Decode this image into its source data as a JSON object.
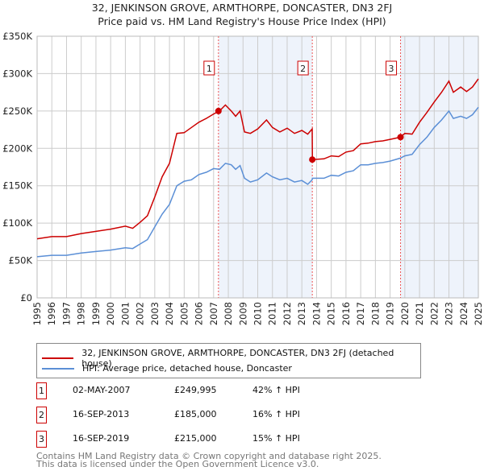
{
  "chart_data": {
    "type": "line",
    "title": "32, JENKINSON GROVE, ARMTHORPE, DONCASTER, DN3 2FJ",
    "subtitle": "Price paid vs. HM Land Registry's House Price Index (HPI)",
    "xlim": [
      1995,
      2025
    ],
    "ylim": [
      0,
      350000
    ],
    "y_ticks": [
      {
        "v": 0,
        "label": "£0"
      },
      {
        "v": 50000,
        "label": "£50K"
      },
      {
        "v": 100000,
        "label": "£100K"
      },
      {
        "v": 150000,
        "label": "£150K"
      },
      {
        "v": 200000,
        "label": "£200K"
      },
      {
        "v": 250000,
        "label": "£250K"
      },
      {
        "v": 300000,
        "label": "£300K"
      },
      {
        "v": 350000,
        "label": "£350K"
      }
    ],
    "x_ticks": [
      "1995",
      "1996",
      "1997",
      "1998",
      "1999",
      "2000",
      "2001",
      "2002",
      "2003",
      "2004",
      "2005",
      "2006",
      "2007",
      "2008",
      "2009",
      "2010",
      "2011",
      "2012",
      "2013",
      "2014",
      "2015",
      "2016",
      "2017",
      "2018",
      "2019",
      "2020",
      "2021",
      "2022",
      "2023",
      "2024",
      "2025"
    ],
    "x": [
      1995,
      1996,
      1997,
      1998,
      1999,
      2000,
      2001,
      2001.5,
      2002,
      2002.5,
      2003,
      2003.5,
      2004,
      2004.5,
      2005,
      2005.5,
      2006,
      2006.5,
      2007,
      2007.4,
      2007.8,
      2008.2,
      2008.5,
      2008.8,
      2009.1,
      2009.5,
      2010,
      2010.6,
      2011,
      2011.5,
      2012,
      2012.5,
      2013,
      2013.4,
      2013.7,
      2013.72,
      2014.5,
      2015,
      2015.5,
      2016,
      2016.5,
      2017,
      2017.5,
      2018,
      2018.5,
      2019,
      2019.7,
      2020,
      2020.5,
      2021,
      2021.5,
      2022,
      2022.5,
      2023,
      2023.3,
      2023.8,
      2024.2,
      2024.6,
      2025
    ],
    "series": [
      {
        "name": "32, JENKINSON GROVE, ARMTHORPE, DONCASTER, DN3 2FJ (detached house)",
        "color": "#cc0000",
        "unit": "K",
        "values": [
          79,
          82,
          82,
          86,
          89,
          92,
          96,
          93,
          101,
          110,
          135,
          162,
          180,
          220,
          221,
          228,
          235,
          240,
          246,
          250,
          258,
          250,
          243,
          250,
          222,
          220,
          226,
          238,
          228,
          222,
          227,
          220,
          224,
          219,
          226,
          185,
          186,
          190,
          189,
          195,
          197,
          206,
          207,
          209,
          210,
          212,
          215,
          220,
          219,
          235,
          248,
          262,
          275,
          290,
          275,
          282,
          276,
          282,
          293
        ]
      },
      {
        "name": "HPI: Average price, detached house, Doncaster",
        "color": "#5b8fd6",
        "unit": "K",
        "values": [
          55,
          57,
          57,
          60,
          62,
          64,
          67,
          66,
          72,
          78,
          95,
          112,
          125,
          150,
          156,
          158,
          165,
          168,
          173,
          172,
          180,
          178,
          172,
          177,
          160,
          155,
          158,
          167,
          162,
          158,
          160,
          155,
          157,
          152,
          158,
          160,
          160,
          164,
          163,
          168,
          170,
          178,
          178,
          180,
          181,
          183,
          187,
          190,
          192,
          205,
          215,
          228,
          238,
          250,
          240,
          243,
          240,
          245,
          255
        ]
      }
    ],
    "shaded_ranges": [
      [
        2007.33,
        2013.71
      ],
      [
        2019.71,
        2025
      ]
    ],
    "sales": [
      {
        "n": "1",
        "date": "02-MAY-2007",
        "x": 2007.33,
        "price": "£249,995",
        "value": 249995,
        "hpi": "42% ↑ HPI"
      },
      {
        "n": "2",
        "date": "16-SEP-2013",
        "x": 2013.71,
        "price": "£185,000",
        "value": 185000,
        "hpi": "16% ↑ HPI"
      },
      {
        "n": "3",
        "date": "16-SEP-2019",
        "x": 2019.71,
        "price": "£215,000",
        "value": 215000,
        "hpi": "15% ↑ HPI"
      }
    ]
  },
  "footer": {
    "line1": "Contains HM Land Registry data © Crown copyright and database right 2025.",
    "line2": "This data is licensed under the Open Government Licence v3.0."
  }
}
